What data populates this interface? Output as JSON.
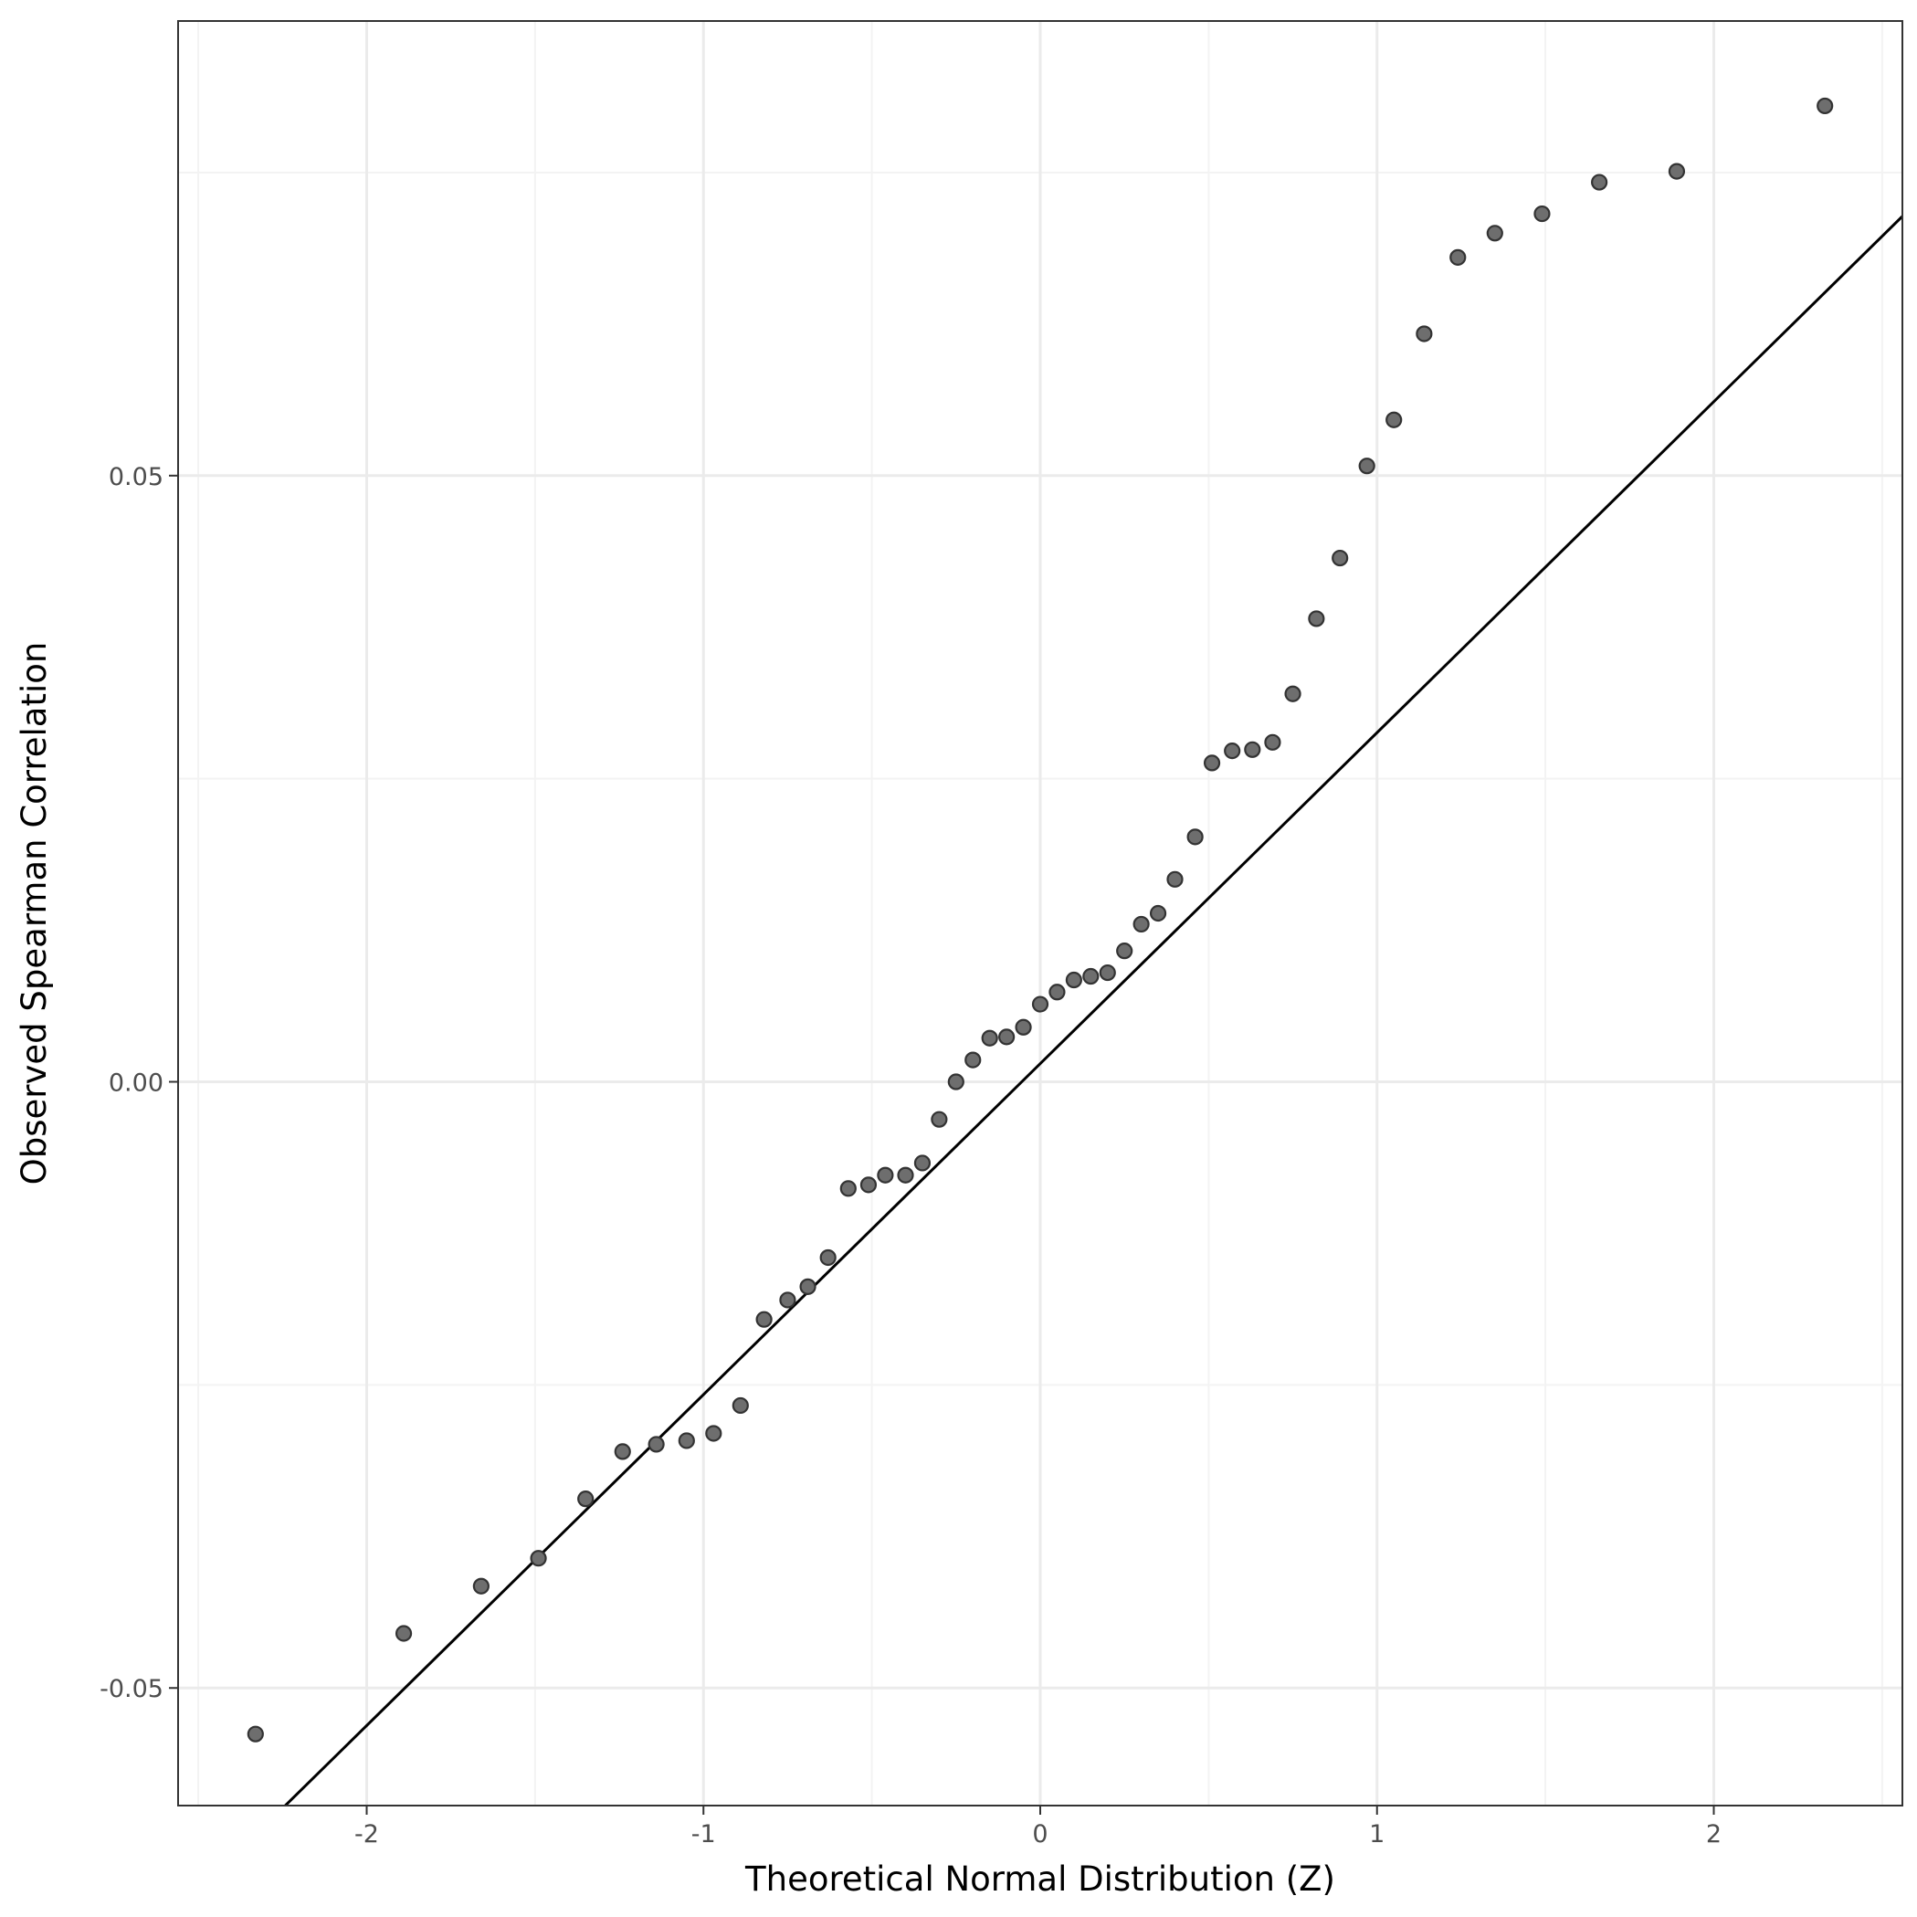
{
  "colors": {
    "panel_border": "#333333",
    "grid_major": "#ebebeb",
    "grid_minor": "#f3f3f3",
    "point_fill": "#6e6e6e",
    "point_stroke": "#333333",
    "reference_line": "#000000"
  },
  "chart_data": {
    "type": "scatter",
    "title": "",
    "xlabel": "Theoretical Normal Distribution (Z)",
    "ylabel": "Observed Spearman Correlation",
    "xlim": [
      -2.56,
      2.56
    ],
    "ylim": [
      -0.0597,
      0.0875
    ],
    "grid": true,
    "x_ticks": [
      -2,
      -1,
      0,
      1,
      2
    ],
    "x_tick_labels": [
      "-2",
      "-1",
      "0",
      "1",
      "2"
    ],
    "y_ticks": [
      -0.05,
      0.0,
      0.05
    ],
    "y_tick_labels": [
      "-0.05",
      "0.00",
      "0.05"
    ],
    "reference_line": {
      "intercept": 0.0015,
      "slope": 0.0273
    },
    "series": [
      {
        "points": [
          [
            -2.33,
            -0.0538
          ],
          [
            -1.89,
            -0.0455
          ],
          [
            -1.66,
            -0.0416
          ],
          [
            -1.49,
            -0.0393
          ],
          [
            -1.35,
            -0.0344
          ],
          [
            -1.24,
            -0.0305
          ],
          [
            -1.14,
            -0.0299
          ],
          [
            -1.05,
            -0.0296
          ],
          [
            -0.97,
            -0.029
          ],
          [
            -0.89,
            -0.0267
          ],
          [
            -0.82,
            -0.0196
          ],
          [
            -0.75,
            -0.018
          ],
          [
            -0.69,
            -0.0169
          ],
          [
            -0.63,
            -0.0145
          ],
          [
            -0.57,
            -0.0088
          ],
          [
            -0.51,
            -0.0085
          ],
          [
            -0.46,
            -0.0077
          ],
          [
            -0.4,
            -0.0077
          ],
          [
            -0.35,
            -0.0067
          ],
          [
            -0.3,
            -0.0031
          ],
          [
            -0.25,
            0.0
          ],
          [
            -0.2,
            0.0018
          ],
          [
            -0.15,
            0.0036
          ],
          [
            -0.1,
            0.0037
          ],
          [
            -0.05,
            0.0045
          ],
          [
            0.0,
            0.0064
          ],
          [
            0.05,
            0.0074
          ],
          [
            0.1,
            0.0084
          ],
          [
            0.15,
            0.0087
          ],
          [
            0.2,
            0.009
          ],
          [
            0.25,
            0.0108
          ],
          [
            0.3,
            0.013
          ],
          [
            0.35,
            0.0139
          ],
          [
            0.4,
            0.0167
          ],
          [
            0.46,
            0.0202
          ],
          [
            0.51,
            0.0263
          ],
          [
            0.57,
            0.0273
          ],
          [
            0.63,
            0.0274
          ],
          [
            0.69,
            0.028
          ],
          [
            0.75,
            0.032
          ],
          [
            0.82,
            0.0382
          ],
          [
            0.89,
            0.0432
          ],
          [
            0.97,
            0.0508
          ],
          [
            1.05,
            0.0546
          ],
          [
            1.14,
            0.0617
          ],
          [
            1.24,
            0.068
          ],
          [
            1.35,
            0.07
          ],
          [
            1.49,
            0.0716
          ],
          [
            1.66,
            0.0742
          ],
          [
            1.89,
            0.0751
          ],
          [
            2.33,
            0.0805
          ]
        ]
      }
    ]
  }
}
